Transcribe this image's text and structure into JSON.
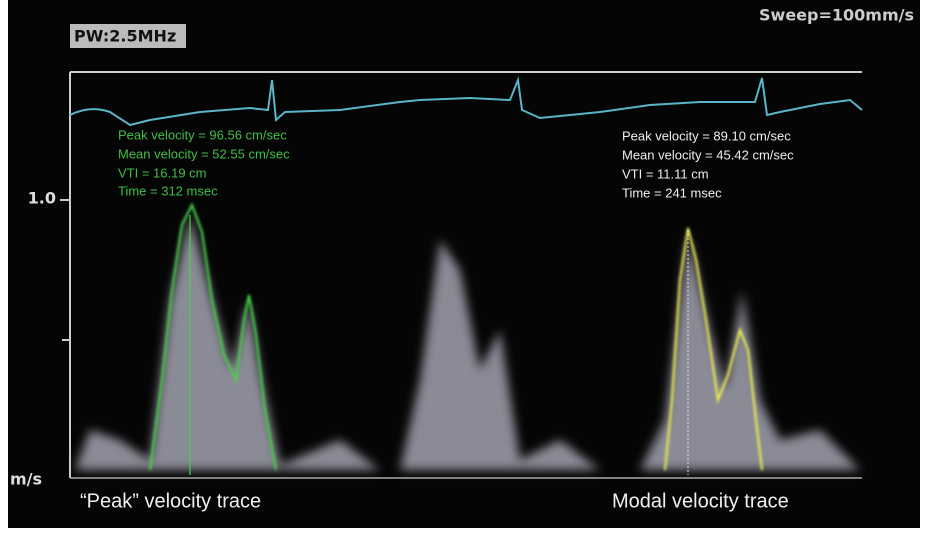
{
  "header": {
    "mode": "PW:2.5MHz",
    "sweep": "Sweep=100mm/s"
  },
  "axis": {
    "tick": "1.0",
    "unit": "m/s"
  },
  "left_measurements": [
    "Peak velocity = 96.56 cm/sec",
    "Mean velocity = 52.55 cm/sec",
    "VTI = 16.19 cm",
    "Time = 312 msec"
  ],
  "right_measurements": [
    "Peak velocity = 89.10 cm/sec",
    "Mean velocity = 45.42 cm/sec",
    "VTI = 11.11 cm",
    "Time = 241 msec"
  ],
  "captions": [
    "“Peak” velocity trace",
    "Modal velocity trace"
  ]
}
